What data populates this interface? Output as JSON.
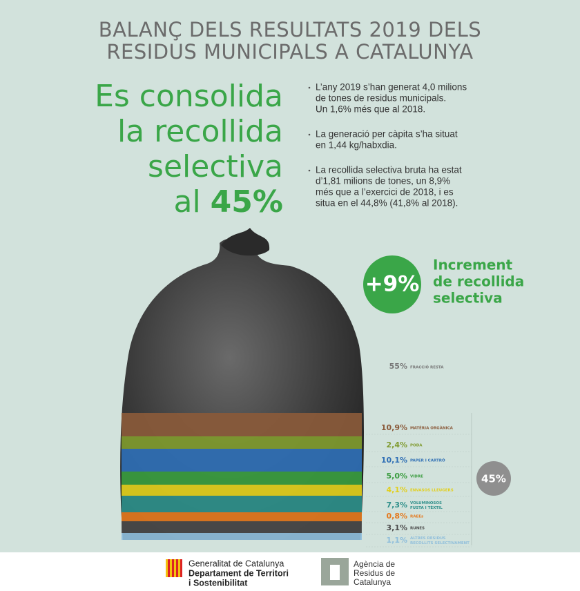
{
  "header": {
    "title": [
      "BALANÇ DELS RESULTATS 2019 DELS",
      "RESIDUS MUNICIPALS A CATALUNYA"
    ]
  },
  "headline": {
    "lines": [
      "Es consolida",
      "la recollida",
      "selectiva"
    ],
    "last_prefix": "al",
    "last_value": "45%"
  },
  "bullets": [
    [
      "L’any 2019 s’han generat 4,0 milions",
      "de tones de residus municipals.",
      "Un 1,6% més que al 2018."
    ],
    [
      "La generació per càpita s’ha situat",
      "en 1,44 kg/habxdia."
    ],
    [
      "La recollida selectiva bruta ha estat",
      "d’1,81 milions de tones, un 8,9%",
      "més que a l’exercici de 2018, i es",
      "situa en el 44,8% (41,8% al 2018)."
    ]
  ],
  "increment": {
    "value": "+9%",
    "text": [
      "Increment",
      "de recollida",
      "selectiva"
    ]
  },
  "rest": {
    "value": "55%",
    "label": "FRACCIÓ RESTA"
  },
  "breakdown": [
    {
      "value": "10,9%",
      "label": [
        "MATÈRIA ORGÀNICA"
      ],
      "color": "#8a5a3a"
    },
    {
      "value": "2,4%",
      "label": [
        "PODA"
      ],
      "color": "#7f9a2e"
    },
    {
      "value": "10,1%",
      "label": [
        "PAPER I CARTRÓ"
      ],
      "color": "#2f6fb5"
    },
    {
      "value": "5,0%",
      "label": [
        "VIDRE"
      ],
      "color": "#3a9c3f"
    },
    {
      "value": "4,1%",
      "label": [
        "ENVASOS LLEUGERS"
      ],
      "color": "#e2cf1c"
    },
    {
      "value": "7,3%",
      "label": [
        "VOLUMINOSOS",
        "FUSTA I TÈXTIL"
      ],
      "color": "#2e8f8a"
    },
    {
      "value": "0,8%",
      "label": [
        "RAEEs"
      ],
      "color": "#e4791e"
    },
    {
      "value": "3,1%",
      "label": [
        "RUNES"
      ],
      "color": "#4a4a4a"
    },
    {
      "value": "1,1%",
      "label": [
        "ALTRES RESIDUS",
        "RECOLLITS SELECTIVAMENT"
      ],
      "color": "#8fbedb"
    }
  ],
  "selective_total": "45%",
  "footer": {
    "generalitat": [
      "Generalitat de Catalunya",
      "Departament de Territori",
      "i Sostenibilitat"
    ],
    "arc": [
      "Agència de",
      "Residus de",
      "Catalunya"
    ]
  }
}
